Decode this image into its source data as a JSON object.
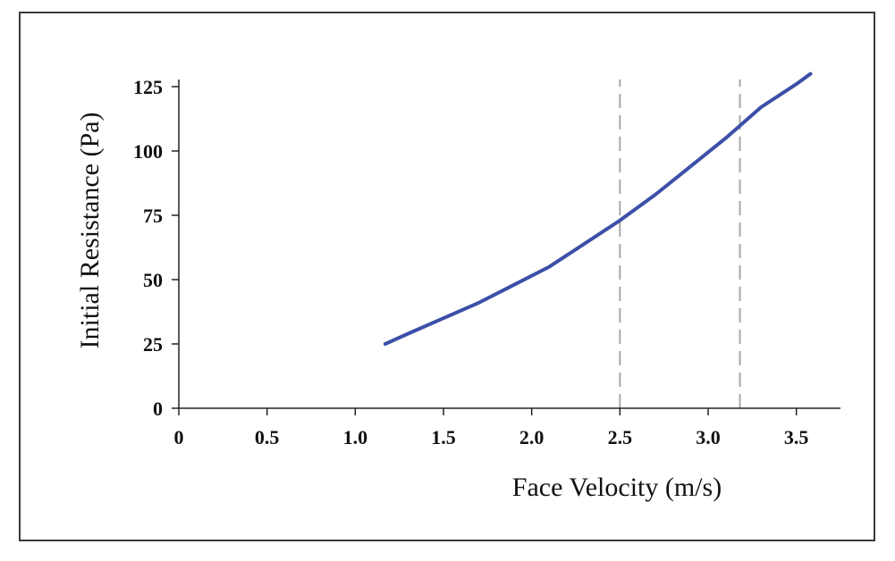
{
  "chart_data": {
    "type": "line",
    "title": "",
    "xlabel": "Face Velocity (m/s)",
    "ylabel": "Initial Resistance (Pa)",
    "xlim": [
      0,
      3.75
    ],
    "ylim": [
      0,
      125
    ],
    "x_ticks": [
      {
        "value": 0,
        "label": "0"
      },
      {
        "value": 0.5,
        "label": "0.5"
      },
      {
        "value": 1.0,
        "label": "1.0"
      },
      {
        "value": 1.5,
        "label": "1.5"
      },
      {
        "value": 2.0,
        "label": "2.0"
      },
      {
        "value": 2.5,
        "label": "2.5"
      },
      {
        "value": 3.0,
        "label": "3.0"
      },
      {
        "value": 3.5,
        "label": "3.5"
      }
    ],
    "y_ticks": [
      {
        "value": 0,
        "label": "0"
      },
      {
        "value": 25,
        "label": "25"
      },
      {
        "value": 50,
        "label": "50"
      },
      {
        "value": 75,
        "label": "75"
      },
      {
        "value": 100,
        "label": "100"
      },
      {
        "value": 125,
        "label": "125"
      }
    ],
    "grid": false,
    "legend": "none",
    "series": [
      {
        "color": "#3c4fa8",
        "x": [
          1.17,
          1.3,
          1.5,
          1.7,
          1.9,
          2.1,
          2.3,
          2.5,
          2.7,
          2.9,
          3.1,
          3.3,
          3.5,
          3.58
        ],
        "y": [
          25,
          29,
          35,
          41,
          48,
          55,
          64,
          73,
          83,
          94,
          105,
          117,
          126,
          130
        ]
      }
    ],
    "reference_lines": [
      {
        "axis": "x",
        "value": 2.5,
        "style": "dashed",
        "color": "#a8a8a8"
      },
      {
        "axis": "x",
        "value": 3.18,
        "style": "dashed",
        "color": "#a8a8a8"
      }
    ]
  }
}
